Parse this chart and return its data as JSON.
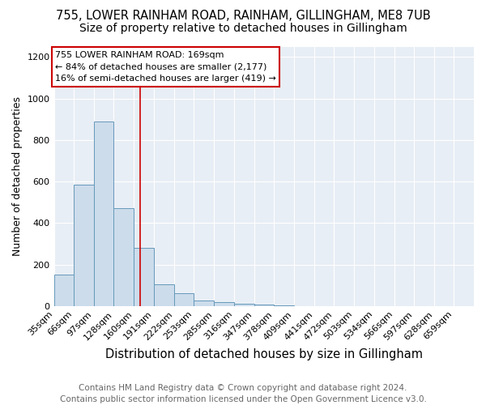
{
  "title1": "755, LOWER RAINHAM ROAD, RAINHAM, GILLINGHAM, ME8 7UB",
  "title2": "Size of property relative to detached houses in Gillingham",
  "xlabel": "Distribution of detached houses by size in Gillingham",
  "ylabel": "Number of detached properties",
  "bar_edges": [
    35,
    66,
    97,
    128,
    160,
    191,
    222,
    253,
    285,
    316,
    347,
    378,
    409,
    441,
    472,
    503,
    534,
    566,
    597,
    628,
    659
  ],
  "bar_heights": [
    150,
    585,
    890,
    470,
    280,
    105,
    62,
    28,
    18,
    12,
    8,
    5,
    0,
    0,
    0,
    0,
    0,
    0,
    0,
    0,
    0
  ],
  "bar_color": "#ccdceb",
  "bar_edge_color": "#6699bb",
  "vline_x": 169,
  "vline_color": "#cc0000",
  "annotation_text": "755 LOWER RAINHAM ROAD: 169sqm\n← 84% of detached houses are smaller (2,177)\n16% of semi-detached houses are larger (419) →",
  "annotation_box_color": "white",
  "annotation_box_edge_color": "#cc0000",
  "ylim": [
    0,
    1250
  ],
  "yticks": [
    0,
    200,
    400,
    600,
    800,
    1000,
    1200
  ],
  "xlim_left": 35,
  "xlim_right": 690,
  "background_color": "#e8eef5",
  "footer_text": "Contains HM Land Registry data © Crown copyright and database right 2024.\nContains public sector information licensed under the Open Government Licence v3.0.",
  "title1_fontsize": 10.5,
  "title2_fontsize": 10,
  "xlabel_fontsize": 10.5,
  "ylabel_fontsize": 9,
  "footer_fontsize": 7.5,
  "tick_fontsize": 8,
  "bin_width": 31
}
